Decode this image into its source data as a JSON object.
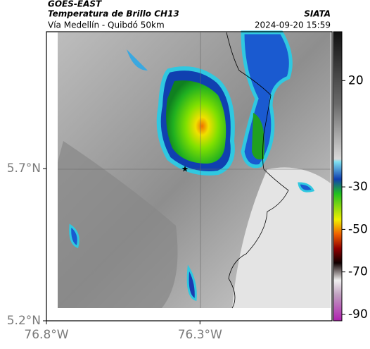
{
  "header": {
    "source": "GOES-EAST",
    "product": "Temperatura de Brillo CH13",
    "location": "Vía Medellín - Quibdó 50km",
    "brand": "SIATA",
    "datetime": "2024-09-20 15:59"
  },
  "map": {
    "lon_range": [
      -76.8,
      -75.87
    ],
    "lat_range": [
      5.2,
      6.15
    ],
    "lat_ticks": [
      {
        "value": 5.7,
        "label": "5.7°N"
      },
      {
        "value": 5.2,
        "label": "5.2°N"
      }
    ],
    "lon_ticks": [
      {
        "value": -76.8,
        "label": "76.8°W"
      },
      {
        "value": -76.3,
        "label": "76.3°W"
      }
    ]
  },
  "colorbar": {
    "range": [
      -93,
      43
    ],
    "ticks": [
      20,
      -30,
      -50,
      -70,
      -90
    ]
  }
}
